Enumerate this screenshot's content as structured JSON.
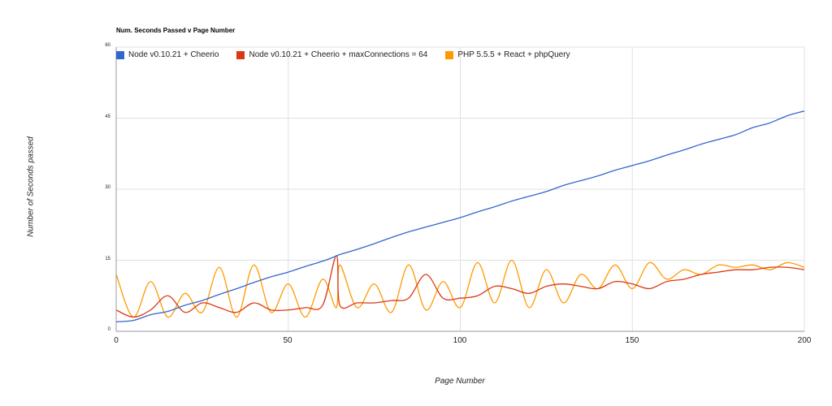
{
  "chart_data": {
    "type": "line",
    "title": "Num. Seconds Passed v Page Number",
    "xlabel": "Page Number",
    "ylabel": "Number of Seconds passed",
    "xlim": [
      0,
      200
    ],
    "ylim": [
      0,
      60
    ],
    "x_ticks": [
      "0",
      "50",
      "100",
      "150",
      "200"
    ],
    "y_ticks": [
      "0",
      "15",
      "30",
      "45",
      "60"
    ],
    "grid": true,
    "legend_position": "top",
    "x": [
      0,
      5,
      10,
      15,
      20,
      25,
      30,
      35,
      40,
      45,
      50,
      55,
      60,
      64,
      65,
      70,
      75,
      80,
      85,
      90,
      95,
      100,
      105,
      110,
      115,
      120,
      125,
      130,
      135,
      140,
      145,
      150,
      155,
      160,
      165,
      170,
      175,
      180,
      185,
      190,
      195,
      200
    ],
    "series": [
      {
        "name": "Node v0.10.21 + Cheerio",
        "color": "#3366cc",
        "values": [
          2.0,
          2.3,
          3.5,
          4.2,
          5.5,
          6.5,
          7.8,
          9.0,
          10.3,
          11.5,
          12.5,
          13.7,
          14.8,
          15.9,
          16.2,
          17.3,
          18.5,
          19.8,
          21.0,
          22.0,
          23.0,
          24.0,
          25.2,
          26.3,
          27.5,
          28.5,
          29.5,
          30.8,
          31.8,
          32.8,
          34.0,
          35.0,
          36.0,
          37.2,
          38.3,
          39.5,
          40.5,
          41.5,
          43.0,
          44.0,
          45.5,
          46.5
        ]
      },
      {
        "name": "Node v0.10.21 + Cheerio + maxConnections = 64",
        "color": "#dc3912",
        "values": [
          4.5,
          3.0,
          4.5,
          7.5,
          4.0,
          6.0,
          5.0,
          4.0,
          6.0,
          4.5,
          4.5,
          5.0,
          5.5,
          16.0,
          5.5,
          6.0,
          6.0,
          6.5,
          7.0,
          12.0,
          7.0,
          7.0,
          7.5,
          9.5,
          9.0,
          8.0,
          9.5,
          10.0,
          9.5,
          9.0,
          10.5,
          10.0,
          9.0,
          10.5,
          11.0,
          12.0,
          12.5,
          13.0,
          13.0,
          13.5,
          13.5,
          13.0
        ]
      },
      {
        "name": "PHP 5.5.5 + React + phpQuery",
        "color": "#ff9900",
        "values": [
          12.0,
          3.0,
          10.5,
          3.0,
          8.0,
          4.0,
          13.5,
          3.0,
          14.0,
          4.0,
          10.0,
          3.0,
          11.0,
          5.0,
          14.0,
          5.0,
          10.0,
          4.0,
          14.0,
          4.5,
          10.5,
          5.0,
          14.5,
          6.0,
          15.0,
          5.0,
          13.0,
          6.0,
          12.0,
          9.0,
          14.0,
          9.0,
          14.5,
          11.0,
          13.0,
          12.0,
          14.0,
          13.5,
          14.0,
          13.0,
          14.5,
          13.5
        ]
      }
    ]
  },
  "legend": {
    "items": [
      {
        "label": "Node v0.10.21 + Cheerio",
        "color": "#3366cc"
      },
      {
        "label": "Node v0.10.21 + Cheerio + maxConnections = 64",
        "color": "#dc3912"
      },
      {
        "label": "PHP 5.5.5 + React + phpQuery",
        "color": "#ff9900"
      }
    ]
  }
}
